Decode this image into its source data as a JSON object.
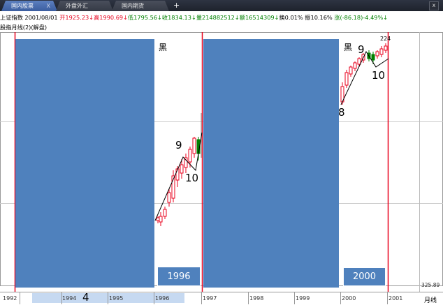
{
  "tabs": [
    {
      "label": "国内股票",
      "close": "X",
      "active": true
    },
    {
      "label": "外盘外汇",
      "active": false
    },
    {
      "label": "国内期货",
      "active": false
    }
  ],
  "tab_add": "+",
  "window_close": "x",
  "info": {
    "name": "上证指数",
    "date": "2001/08/01",
    "open": "开1925.23↓",
    "high": "高1990.69↓",
    "low": "低1795.56↓",
    "close": "收1834.13↓",
    "volume": "量214882512↓",
    "amount": "额16514309↓",
    "turnover": "换0.01%",
    "amplitude": "振10.16%",
    "change": "涨(-86.18)-4.49%↓"
  },
  "subtitle": "股指月线(2)(解盘)",
  "labels": {
    "hei_left": "黑",
    "hei_right": "黑",
    "peak_value": "224",
    "left_9": "9",
    "left_10": "10",
    "right_9": "9",
    "right_10": "10",
    "right_8": "8",
    "bottom_4": "4",
    "year_box_left": "1996",
    "year_box_right": "2000",
    "y_low": "325.89",
    "period": "月线"
  },
  "x_axis": [
    "1992",
    "1994",
    "1995",
    "1996",
    "1997",
    "1998",
    "1999",
    "2000",
    "2001"
  ],
  "colors": {
    "panel": "#4f81bd",
    "up": "#e8001c",
    "down": "#008000"
  }
}
